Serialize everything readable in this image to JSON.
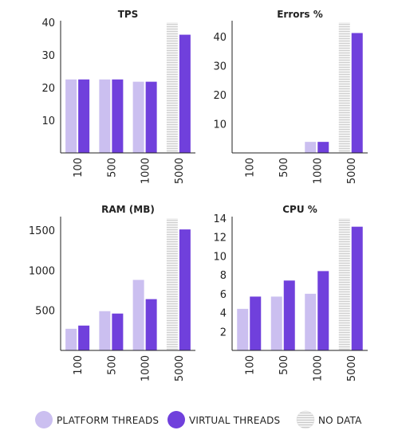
{
  "colors": {
    "platform": "#cbbff0",
    "virtual": "#7040dc",
    "nodata_fill": "#f2f2f2",
    "nodata_stripe": "#cfcfcf",
    "axis": "#222222"
  },
  "legend": [
    {
      "key": "platform",
      "label": "PLATFORM THREADS"
    },
    {
      "key": "virtual",
      "label": "VIRTUAL THREADS"
    },
    {
      "key": "nodata",
      "label": "NO DATA"
    }
  ],
  "chart_data": [
    {
      "type": "bar",
      "title": "TPS",
      "categories": [
        "100",
        "500",
        "1000",
        "5000"
      ],
      "ylim": [
        0,
        40
      ],
      "yticks": [
        10,
        20,
        30,
        40
      ],
      "grid": false,
      "series": [
        {
          "name": "PLATFORM THREADS",
          "key": "platform",
          "values": [
            22.5,
            22.5,
            21.8,
            null
          ]
        },
        {
          "name": "VIRTUAL THREADS",
          "key": "virtual",
          "values": [
            22.5,
            22.5,
            21.8,
            36.2
          ]
        }
      ],
      "no_data": [
        false,
        false,
        false,
        true
      ]
    },
    {
      "type": "bar",
      "title": "Errors %",
      "categories": [
        "100",
        "500",
        "1000",
        "5000"
      ],
      "ylim": [
        0,
        45
      ],
      "yticks": [
        10,
        20,
        30,
        40
      ],
      "grid": false,
      "series": [
        {
          "name": "PLATFORM THREADS",
          "key": "platform",
          "values": [
            0,
            0,
            3.8,
            null
          ]
        },
        {
          "name": "VIRTUAL THREADS",
          "key": "virtual",
          "values": [
            0,
            0,
            3.8,
            41.3
          ]
        }
      ],
      "no_data": [
        false,
        false,
        false,
        true
      ]
    },
    {
      "type": "bar",
      "title": "RAM (MB)",
      "categories": [
        "100",
        "500",
        "1000",
        "5000"
      ],
      "ylim": [
        0,
        1650
      ],
      "yticks": [
        500,
        1000,
        1500
      ],
      "grid": false,
      "series": [
        {
          "name": "PLATFORM THREADS",
          "key": "platform",
          "values": [
            270,
            490,
            880,
            null
          ]
        },
        {
          "name": "VIRTUAL THREADS",
          "key": "virtual",
          "values": [
            310,
            460,
            640,
            1510
          ]
        }
      ],
      "no_data": [
        false,
        false,
        false,
        true
      ]
    },
    {
      "type": "bar",
      "title": "CPU %",
      "categories": [
        "100",
        "500",
        "1000",
        "5000"
      ],
      "ylim": [
        0,
        14
      ],
      "yticks": [
        2,
        4,
        6,
        8,
        10,
        12,
        14
      ],
      "grid": false,
      "series": [
        {
          "name": "PLATFORM THREADS",
          "key": "platform",
          "values": [
            4.4,
            5.7,
            6.0,
            null
          ]
        },
        {
          "name": "VIRTUAL THREADS",
          "key": "virtual",
          "values": [
            5.7,
            7.4,
            8.4,
            13.1
          ]
        }
      ],
      "no_data": [
        false,
        false,
        false,
        true
      ]
    }
  ]
}
